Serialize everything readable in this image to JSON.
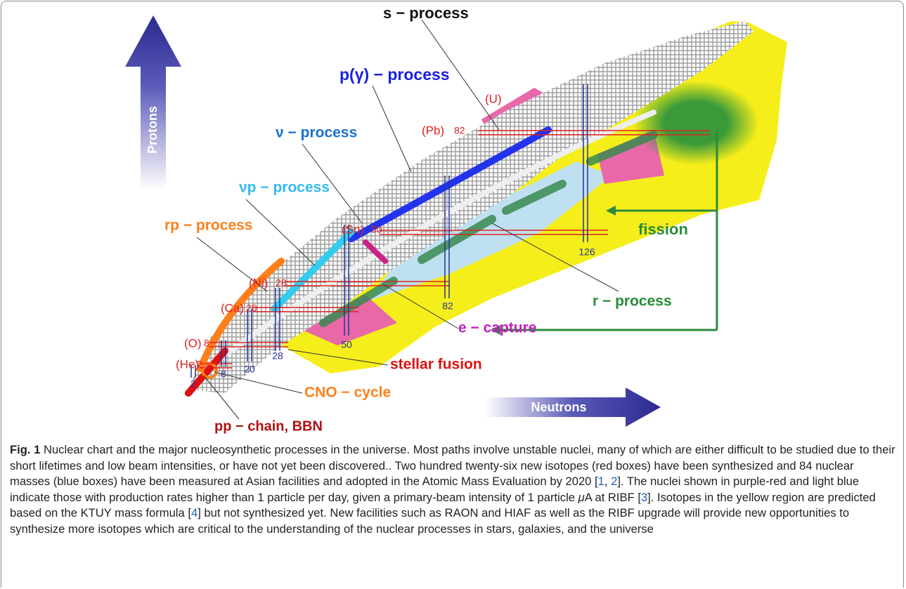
{
  "figure": {
    "axes": {
      "protons": "Protons",
      "neutrons": "Neutrons"
    },
    "processes": [
      "s − process",
      "p(γ) − process",
      "ν − process",
      "νp − process",
      "rp − process",
      "r − process",
      "e − capture",
      "stellar fusion",
      "CNO − cycle",
      "pp − chain,  BBN",
      "fission"
    ],
    "elements": [
      {
        "label": "(U)"
      },
      {
        "label": "(Pb)",
        "magic": 82
      },
      {
        "label": "(Sn)",
        "magic": 50
      },
      {
        "label": "(Ni)",
        "magic": 28
      },
      {
        "label": "(Ca)",
        "magic": 20
      },
      {
        "label": "(O)",
        "magic": 8
      },
      {
        "label": "(He)",
        "magic": 2
      }
    ],
    "neutron_magic": [
      126,
      82,
      50,
      28,
      20,
      8,
      2
    ]
  },
  "caption": {
    "label": "Fig. 1",
    "parts": [
      " Nuclear chart and the major nucleosynthetic processes in the universe. Most paths involve unstable nuclei, many of which are either difficult to be studied due to their short lifetimes and low beam intensities, or have not yet been discovered.. Two hundred twenty-six new isotopes (red boxes) have been synthesized and 84 nuclear masses (blue boxes) have been measured at Asian facilities and adopted in the Atomic Mass Evaluation by 2020 [",
      "1",
      ", ",
      "2",
      "]. The nuclei shown in purple-red and light blue indicate those with production rates higher than 1 particle per day, given a primary-beam intensity of 1 particle ",
      "μ",
      "A at RIBF [",
      "3",
      "]. Isotopes in the yellow region are predicted based on the KTUY mass formula [",
      "4",
      "] but not synthesized yet. New facilities such as RAON and HIAF as well as the RIBF upgrade will provide new opportunities to synthesize more isotopes which are critical to the understanding of the nuclear processes in stars, galaxies, and the universe"
    ]
  }
}
